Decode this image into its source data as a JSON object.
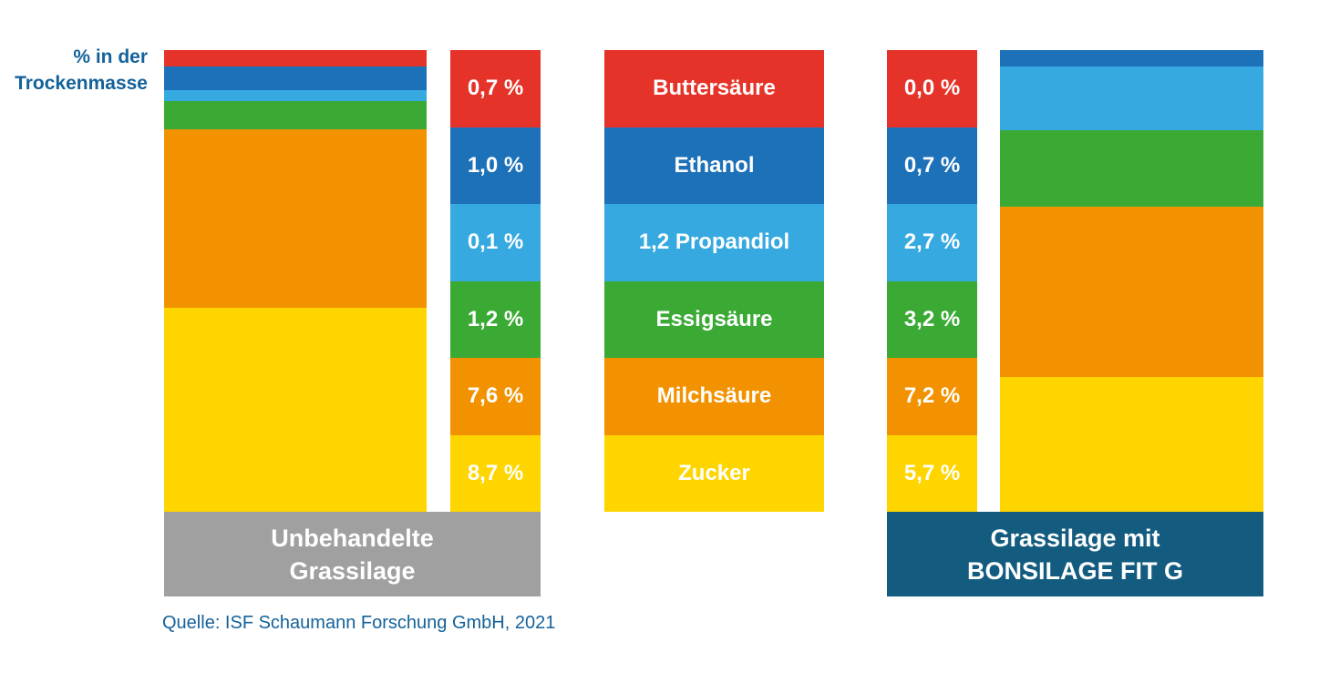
{
  "colors": {
    "background": "#ffffff",
    "text_blue": "#14629a",
    "white": "#ffffff"
  },
  "chart_data": {
    "type": "bar",
    "subtype": "stacked-comparison",
    "ylabel": "% in der Trockenmasse",
    "ylabel_line1": "% in der",
    "ylabel_line2": "Trockenmasse",
    "categories": [
      "Buttersäure",
      "Ethanol",
      "1,2 Propandiol",
      "Essigsäure",
      "Milchsäure",
      "Zucker"
    ],
    "segment_colors": [
      "#e6332a",
      "#1d71b8",
      "#36a9e1",
      "#3aaa35",
      "#f39200",
      "#ffd500"
    ],
    "legend_position": "center-columns",
    "grid": false,
    "series": [
      {
        "name": "Unbehandelte Grassilage",
        "name_line1": "Unbehandelte",
        "name_line2": "Grassilage",
        "values": [
          0.7,
          1.0,
          0.1,
          1.2,
          7.6,
          8.7
        ],
        "value_labels": [
          "0,7 %",
          "1,0 %",
          "0,1 %",
          "1,2 %",
          "7,6 %",
          "8,7 %"
        ],
        "label_box_color": "#a0a0a0"
      },
      {
        "name": "Grassilage mit BONSILAGE FIT G",
        "name_line1": "Grassilage mit",
        "name_line2": "BONSILAGE FIT G",
        "values": [
          0.0,
          0.7,
          2.7,
          3.2,
          7.2,
          5.7
        ],
        "value_labels": [
          "0,0 %",
          "0,7 %",
          "2,7 %",
          "3,2 %",
          "7,2 %",
          "5,7 %"
        ],
        "label_box_color": "#135c7f"
      }
    ],
    "source": "Quelle: ISF Schaumann Forschung GmbH, 2021"
  }
}
